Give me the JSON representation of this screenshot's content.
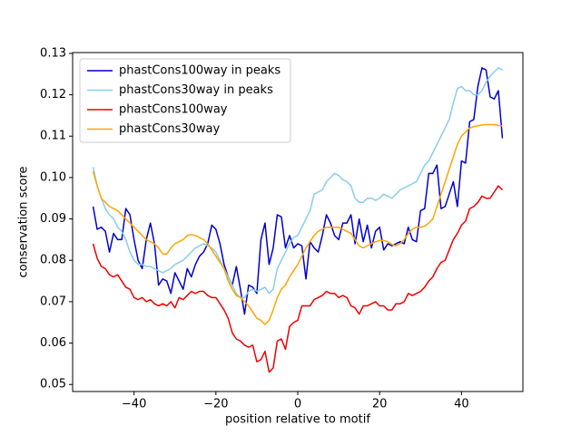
{
  "chart_data": {
    "type": "line",
    "xlabel": "position relative to motif",
    "ylabel": "conservation score",
    "xlim": [
      -55,
      55
    ],
    "ylim": [
      0.0483,
      0.1302
    ],
    "xticks": [
      {
        "value": -40,
        "label": "−40"
      },
      {
        "value": -20,
        "label": "−20"
      },
      0,
      20,
      40
    ],
    "yticks": [
      0.05,
      0.06,
      0.07,
      0.08,
      0.09,
      {
        "value": 0.1,
        "label": "0.10"
      },
      0.11,
      0.12,
      0.13
    ],
    "legend": "upper left",
    "grid": false,
    "x": [
      -50,
      -49,
      -48,
      -47,
      -46,
      -45,
      -44,
      -43,
      -42,
      -41,
      -40,
      -39,
      -38,
      -37,
      -36,
      -35,
      -34,
      -33,
      -32,
      -31,
      -30,
      -29,
      -28,
      -27,
      -26,
      -25,
      -24,
      -23,
      -22,
      -21,
      -20,
      -19,
      -18,
      -17,
      -16,
      -15,
      -14,
      -13,
      -12,
      -11,
      -10,
      -9,
      -8,
      -7,
      -6,
      -5,
      -4,
      -3,
      -2,
      -1,
      0,
      1,
      2,
      3,
      4,
      5,
      6,
      7,
      8,
      9,
      10,
      11,
      12,
      13,
      14,
      15,
      16,
      17,
      18,
      19,
      20,
      21,
      22,
      23,
      24,
      25,
      26,
      27,
      28,
      29,
      30,
      31,
      32,
      33,
      34,
      35,
      36,
      37,
      38,
      39,
      40,
      41,
      42,
      43,
      44,
      45,
      46,
      47,
      48,
      49,
      50
    ],
    "series": [
      {
        "name": "phastCons100way in peaks",
        "color": "#0000cd",
        "values": [
          0.093,
          0.0875,
          0.088,
          0.087,
          0.082,
          0.0865,
          0.085,
          0.085,
          0.0925,
          0.091,
          0.085,
          0.08,
          0.078,
          0.085,
          0.089,
          0.084,
          0.074,
          0.0755,
          0.075,
          0.072,
          0.077,
          0.075,
          0.073,
          0.078,
          0.076,
          0.079,
          0.081,
          0.082,
          0.084,
          0.0885,
          0.0875,
          0.084,
          0.079,
          0.076,
          0.074,
          0.0785,
          0.073,
          0.067,
          0.074,
          0.0735,
          0.072,
          0.085,
          0.089,
          0.079,
          0.083,
          0.091,
          0.0905,
          0.083,
          0.086,
          0.083,
          0.084,
          0.0835,
          0.0755,
          0.0845,
          0.083,
          0.082,
          0.086,
          0.091,
          0.089,
          0.086,
          0.085,
          0.089,
          0.089,
          0.091,
          0.084,
          0.09,
          0.0845,
          0.0885,
          0.083,
          0.087,
          0.088,
          0.0825,
          0.084,
          0.0835,
          0.084,
          0.0845,
          0.084,
          0.088,
          0.085,
          0.0845,
          0.092,
          0.0925,
          0.101,
          0.101,
          0.103,
          0.0925,
          0.093,
          0.096,
          0.099,
          0.093,
          0.104,
          0.1035,
          0.1135,
          0.114,
          0.122,
          0.1265,
          0.126,
          0.1195,
          0.119,
          0.121,
          0.1095
        ]
      },
      {
        "name": "phastCons30way in peaks",
        "color": "#87ceeb",
        "values": [
          0.1025,
          0.098,
          0.095,
          0.0925,
          0.091,
          0.09,
          0.088,
          0.087,
          0.085,
          0.082,
          0.08,
          0.079,
          0.079,
          0.0785,
          0.0785,
          0.078,
          0.0775,
          0.077,
          0.0775,
          0.078,
          0.079,
          0.0795,
          0.08,
          0.081,
          0.082,
          0.083,
          0.0835,
          0.084,
          0.0835,
          0.083,
          0.082,
          0.08,
          0.078,
          0.076,
          0.074,
          0.072,
          0.071,
          0.071,
          0.0725,
          0.073,
          0.0725,
          0.073,
          0.0735,
          0.072,
          0.073,
          0.078,
          0.08,
          0.082,
          0.084,
          0.0855,
          0.086,
          0.088,
          0.09,
          0.092,
          0.096,
          0.0965,
          0.097,
          0.099,
          0.1,
          0.101,
          0.1005,
          0.0995,
          0.099,
          0.098,
          0.095,
          0.094,
          0.094,
          0.095,
          0.095,
          0.0945,
          0.095,
          0.096,
          0.0955,
          0.095,
          0.096,
          0.097,
          0.0975,
          0.098,
          0.0985,
          0.099,
          0.101,
          0.103,
          0.104,
          0.106,
          0.108,
          0.11,
          0.112,
          0.114,
          0.118,
          0.1215,
          0.122,
          0.121,
          0.121,
          0.12,
          0.12,
          0.121,
          0.123,
          0.1245,
          0.1255,
          0.1265,
          0.126
        ]
      },
      {
        "name": "phastCons100way",
        "color": "#ee0000",
        "values": [
          0.084,
          0.0805,
          0.0785,
          0.078,
          0.0765,
          0.076,
          0.0765,
          0.075,
          0.0735,
          0.073,
          0.071,
          0.0705,
          0.071,
          0.07,
          0.0705,
          0.0695,
          0.069,
          0.0695,
          0.069,
          0.07,
          0.0685,
          0.071,
          0.0705,
          0.0715,
          0.0725,
          0.072,
          0.0725,
          0.0725,
          0.0715,
          0.071,
          0.071,
          0.0695,
          0.068,
          0.066,
          0.0625,
          0.061,
          0.0605,
          0.0595,
          0.059,
          0.0595,
          0.0555,
          0.056,
          0.058,
          0.053,
          0.054,
          0.0605,
          0.061,
          0.0585,
          0.064,
          0.065,
          0.0655,
          0.069,
          0.069,
          0.069,
          0.0705,
          0.071,
          0.0715,
          0.0725,
          0.072,
          0.072,
          0.071,
          0.0715,
          0.071,
          0.069,
          0.0685,
          0.067,
          0.069,
          0.069,
          0.0695,
          0.07,
          0.069,
          0.069,
          0.068,
          0.068,
          0.0695,
          0.0695,
          0.07,
          0.072,
          0.0715,
          0.072,
          0.0725,
          0.0735,
          0.075,
          0.076,
          0.078,
          0.0795,
          0.08,
          0.0825,
          0.085,
          0.0865,
          0.0885,
          0.0895,
          0.0925,
          0.093,
          0.094,
          0.0955,
          0.095,
          0.095,
          0.0965,
          0.098,
          0.097
        ]
      },
      {
        "name": "phastCons30way",
        "color": "#ffa500",
        "values": [
          0.1015,
          0.098,
          0.095,
          0.094,
          0.093,
          0.0925,
          0.092,
          0.091,
          0.09,
          0.089,
          0.088,
          0.087,
          0.086,
          0.085,
          0.0845,
          0.084,
          0.083,
          0.0815,
          0.0815,
          0.083,
          0.084,
          0.0845,
          0.085,
          0.086,
          0.0862,
          0.086,
          0.0855,
          0.085,
          0.084,
          0.0825,
          0.081,
          0.0795,
          0.078,
          0.075,
          0.073,
          0.0715,
          0.071,
          0.07,
          0.069,
          0.0675,
          0.066,
          0.0655,
          0.0645,
          0.0655,
          0.068,
          0.071,
          0.073,
          0.074,
          0.076,
          0.0775,
          0.079,
          0.081,
          0.083,
          0.0845,
          0.086,
          0.087,
          0.0875,
          0.088,
          0.088,
          0.088,
          0.088,
          0.0875,
          0.087,
          0.0865,
          0.085,
          0.0835,
          0.083,
          0.0835,
          0.084,
          0.0845,
          0.0848,
          0.0848,
          0.0845,
          0.0838,
          0.0835,
          0.084,
          0.085,
          0.0865,
          0.0875,
          0.088,
          0.088,
          0.0882,
          0.089,
          0.09,
          0.093,
          0.096,
          0.099,
          0.102,
          0.105,
          0.108,
          0.11,
          0.111,
          0.112,
          0.1123,
          0.1125,
          0.1127,
          0.1128,
          0.1128,
          0.1128,
          0.1126,
          0.1125
        ]
      }
    ]
  }
}
